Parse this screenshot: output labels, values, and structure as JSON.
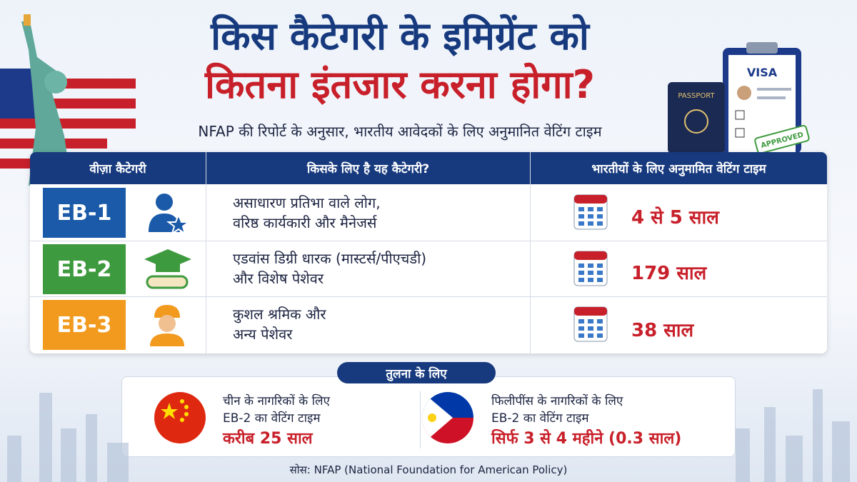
{
  "header": {
    "title_lines": [
      "किस कैटेगरी के इमिग्रेंट को",
      "कितना इंतजार करना होगा?"
    ],
    "subtitle": "NFAP की रिपोर्ट के अनुसार, भारतीय आवेदकों के लिए अनुमानित वेटिंग टाइम"
  },
  "illustration": {
    "visa": "VISA",
    "passport": "PASSPORT",
    "stamp": "APPROVED"
  },
  "table": {
    "headers": [
      "वीज़ा कैटेगरी",
      "किसके लिए है यह कैटेगरी?",
      "भारतीयों के लिए अनुमामित वेटिंग टाइम"
    ],
    "rows": [
      {
        "category": "EB-1",
        "description": [
          "असाधारण प्रतिभा वाले लोग,",
          "वरिष्ठ कार्यकारी और मैनेजर्स"
        ],
        "wait": "4 से 5 साल"
      },
      {
        "category": "EB-2",
        "description": [
          "एडवांस डिग्री धारक (मास्टर्स/पीएचडी)",
          "और विशेष पेशेवर"
        ],
        "wait": "179 साल"
      },
      {
        "category": "EB-3",
        "description": [
          "कुशल श्रमिक और",
          "अन्य पेशेवर"
        ],
        "wait": "38 साल"
      }
    ]
  },
  "comparison": {
    "title": "तुलना के लिए",
    "items": [
      {
        "lines": [
          "चीन के नागरिकों के लिए",
          "EB-2 का वेटिंग टाइम"
        ],
        "wait": "करीब 25 साल"
      },
      {
        "lines": [
          "फिलीपींस के नागरिकों के लिए",
          "EB-2 का वेटिंग टाइम"
        ],
        "wait": "सिर्फ 3 से 4 महीने (0.3 साल)"
      }
    ]
  },
  "source": "सोस: NFAP (National Foundation for American Policy)"
}
